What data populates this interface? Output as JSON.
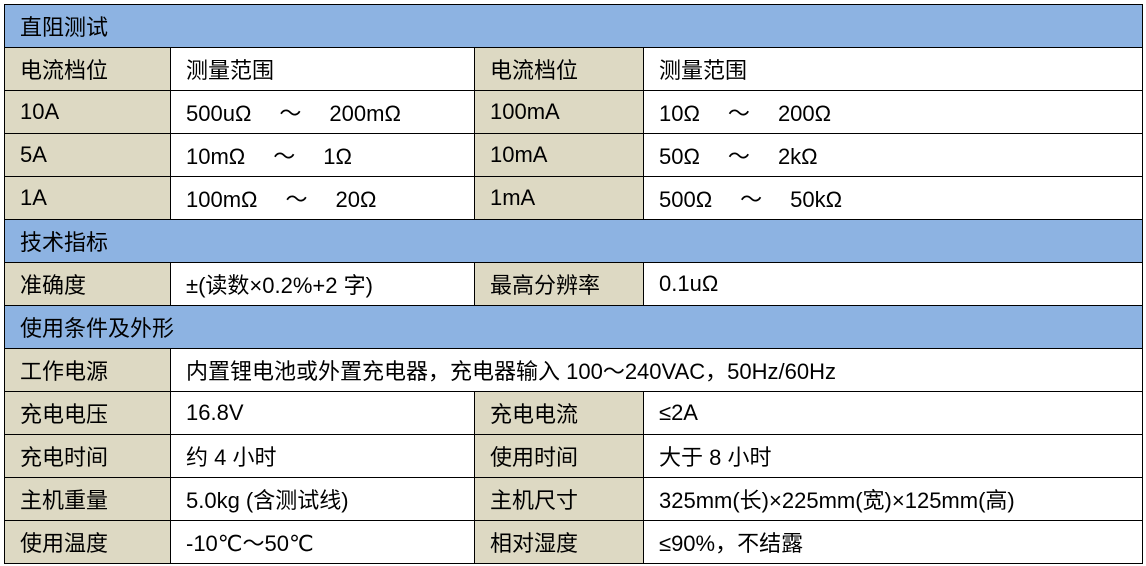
{
  "sections": {
    "dc": "直阻测试",
    "spec": "技术指标",
    "cond": "使用条件及外形"
  },
  "range_header": {
    "col1": "电流档位",
    "col2": "测量范围",
    "col3": "电流档位",
    "col4": "测量范围"
  },
  "ranges": [
    {
      "current_a": "10A",
      "from_a": "500uΩ",
      "to_a": "200mΩ",
      "current_b": "100mA",
      "from_b": "10Ω",
      "to_b": "200Ω"
    },
    {
      "current_a": "5A",
      "from_a": "10mΩ",
      "to_a": "1Ω",
      "current_b": "10mA",
      "from_b": "50Ω",
      "to_b": "2kΩ"
    },
    {
      "current_a": "1A",
      "from_a": "100mΩ",
      "to_a": "20Ω",
      "current_b": "1mA",
      "from_b": "500Ω",
      "to_b": "50kΩ"
    }
  ],
  "tilde": "～",
  "spec": {
    "accuracy_label": "准确度",
    "accuracy": "±(读数×0.2%+2 字)",
    "resolution_label": "最高分辨率",
    "resolution": "0.1uΩ"
  },
  "power": {
    "label": "工作电源",
    "value": "内置锂电池或外置充电器，充电器输入 100～240VAC，50Hz/60Hz"
  },
  "pairs": [
    {
      "l1": "充电电压",
      "v1": "16.8V",
      "l2": "充电电流",
      "v2": "≤2A"
    },
    {
      "l1": "充电时间",
      "v1": "约 4 小时",
      "l2": "使用时间",
      "v2": "大于 8 小时"
    },
    {
      "l1": "主机重量",
      "v1": "5.0kg (含测试线)",
      "l2": "主机尺寸",
      "v2": "325mm(长)×225mm(宽)×125mm(高)"
    },
    {
      "l1": "使用温度",
      "v1": "-10℃～50℃",
      "l2": "相对湿度",
      "v2": "≤90%，不结露"
    }
  ],
  "colors": {
    "section": "#8db3e2",
    "label": "#ddd9c3"
  }
}
